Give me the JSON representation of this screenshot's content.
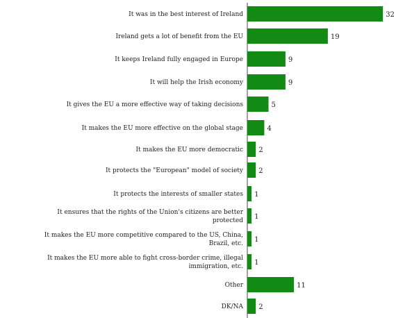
{
  "chart_data": {
    "type": "bar",
    "orientation": "horizontal",
    "bar_color": "#138a13",
    "axis_line": true,
    "grid": false,
    "legend": "none",
    "xlim": [
      0,
      34
    ],
    "categories": [
      [
        "It was in the best interest of Ireland"
      ],
      [
        "Ireland gets a lot of benefit from the EU"
      ],
      [
        "It keeps Ireland fully engaged in Europe"
      ],
      [
        "It will help the Irish economy"
      ],
      [
        "It gives the EU a more effective way of taking decisions"
      ],
      [
        "It makes the EU more effective on the global stage"
      ],
      [
        "It makes the EU more democratic"
      ],
      [
        "It protects the \"European\" model of society"
      ],
      [
        "It protects the interests of smaller states"
      ],
      [
        "It ensures that the rights of the Union's citizens are better",
        "protected"
      ],
      [
        "It makes the EU more competitive compared to the US, China,",
        "Brazil, etc."
      ],
      [
        "It makes the EU more able to fight cross-border crime, illegal",
        "immigration, etc."
      ],
      [
        "Other"
      ],
      [
        "DK/NA"
      ]
    ],
    "values": [
      32,
      19,
      9,
      9,
      5,
      4,
      2,
      2,
      1,
      1,
      1,
      1,
      11,
      2
    ]
  }
}
